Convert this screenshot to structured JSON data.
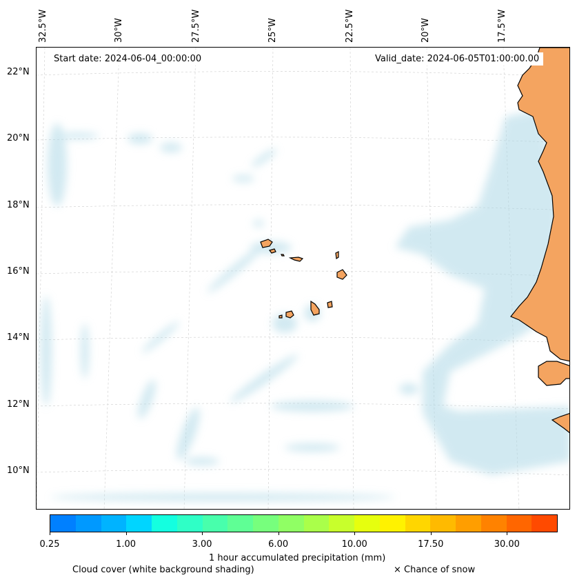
{
  "map": {
    "start_date": "Start date: 2024-06-04_00:00:00",
    "valid_date": "Valid_date: 2024-06-05T01:00:00.00",
    "lon_labels": [
      "32.5°W",
      "30°W",
      "27.5°W",
      "25°W",
      "22.5°W",
      "20°W",
      "17.5°W"
    ],
    "lat_labels": [
      "22°N",
      "20°N",
      "18°N",
      "16°N",
      "14°N",
      "12°N",
      "10°N"
    ]
  },
  "colorbar": {
    "title": "1 hour accumulated precipitation (mm)",
    "tick_labels": [
      "0.25",
      "1.00",
      "3.00",
      "6.00",
      "10.00",
      "17.50",
      "30.00"
    ],
    "colors": [
      "#0080ff",
      "#0099ff",
      "#00b3ff",
      "#00d5ff",
      "#14ffe0",
      "#2fffc6",
      "#48ffac",
      "#5fff95",
      "#77ff7d",
      "#90ff64",
      "#aaff4a",
      "#c8ff2c",
      "#e6ff0e",
      "#fff200",
      "#ffd600",
      "#ffba00",
      "#ff9e00",
      "#ff8200",
      "#ff6600",
      "#ff4a00"
    ]
  },
  "legend": {
    "cloud_cover": "Cloud cover (white background shading)",
    "snow": "× Chance of snow"
  },
  "colors": {
    "land": "#f4a460",
    "cloud": "#add8e6",
    "grid": "#cccccc"
  }
}
